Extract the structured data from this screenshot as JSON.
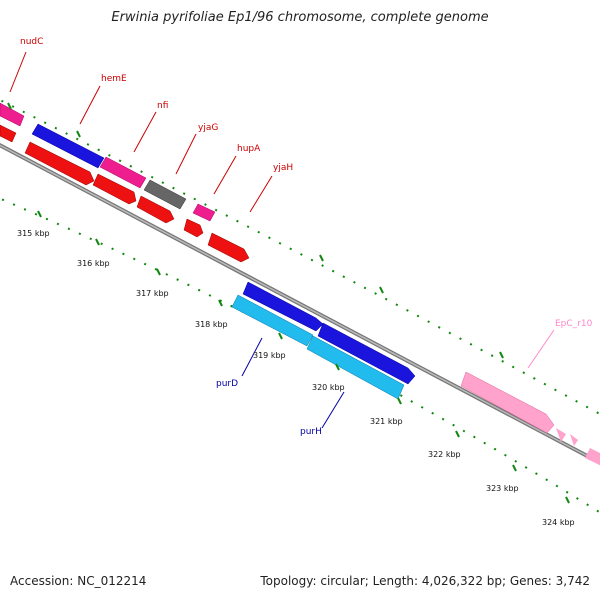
{
  "title": "Erwinia pyrifoliae Ep1/96 chromosome, complete genome",
  "footer": {
    "accession": "Accession: NC_012214",
    "topology": "Topology: circular; Length: 4,026,322 bp; Genes: 3,742"
  },
  "colors": {
    "label_red": "#cc0000",
    "label_blue": "#0000aa",
    "label_pink": "#ff88cc",
    "tick_green": "#118811",
    "backbone": "#888888"
  },
  "ticks": [
    "315 kbp",
    "316 kbp",
    "317 kbp",
    "318 kbp",
    "319 kbp",
    "320 kbp",
    "321 kbp",
    "322 kbp",
    "323 kbp",
    "324 kbp"
  ],
  "gene_labels": [
    {
      "text": "nudC",
      "color": "red"
    },
    {
      "text": "hemE",
      "color": "red"
    },
    {
      "text": "nfi",
      "color": "red"
    },
    {
      "text": "yjaG",
      "color": "red"
    },
    {
      "text": "hupA",
      "color": "red"
    },
    {
      "text": "yjaH",
      "color": "red"
    },
    {
      "text": "purD",
      "color": "blue"
    },
    {
      "text": "purH",
      "color": "blue"
    },
    {
      "text": "EpC_r10",
      "color": "pink"
    }
  ]
}
